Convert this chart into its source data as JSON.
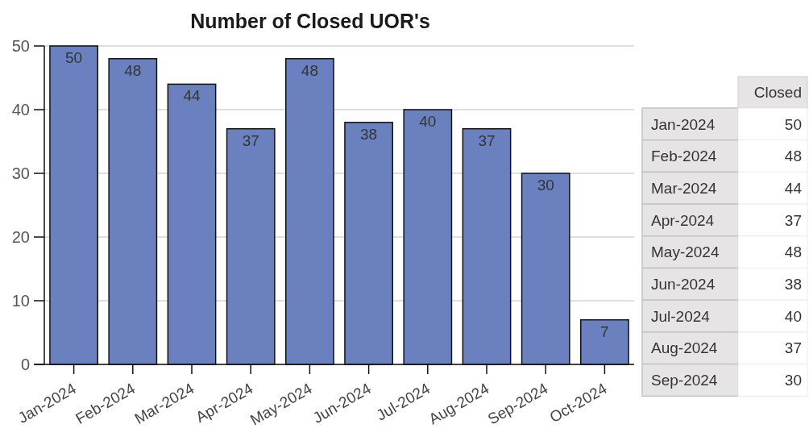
{
  "chart_data": [
    {
      "type": "bar",
      "title": "Number of Closed UOR's",
      "categories": [
        "Jan-2024",
        "Feb-2024",
        "Mar-2024",
        "Apr-2024",
        "May-2024",
        "Jun-2024",
        "Jul-2024",
        "Aug-2024",
        "Sep-2024",
        "Oct-2024"
      ],
      "values": [
        50,
        48,
        44,
        37,
        48,
        38,
        40,
        37,
        30,
        7
      ],
      "color": "#6a80bf",
      "ylim": [
        0,
        50
      ],
      "yticks": [
        0,
        10,
        20,
        30,
        40,
        50
      ],
      "grid": "y",
      "data_labels": true
    },
    {
      "type": "other",
      "categories": [
        "Jan-2024",
        "Feb-2024",
        "Mar-2024",
        "Apr-2024",
        "May-2024",
        "Jun-2024",
        "Jul-2024",
        "Aug-2024",
        "Sep-2024"
      ],
      "series": [
        {
          "name": "Closed",
          "values": [
            50,
            48,
            44,
            37,
            48,
            38,
            40,
            37,
            30
          ]
        }
      ],
      "data_labels": true
    }
  ]
}
